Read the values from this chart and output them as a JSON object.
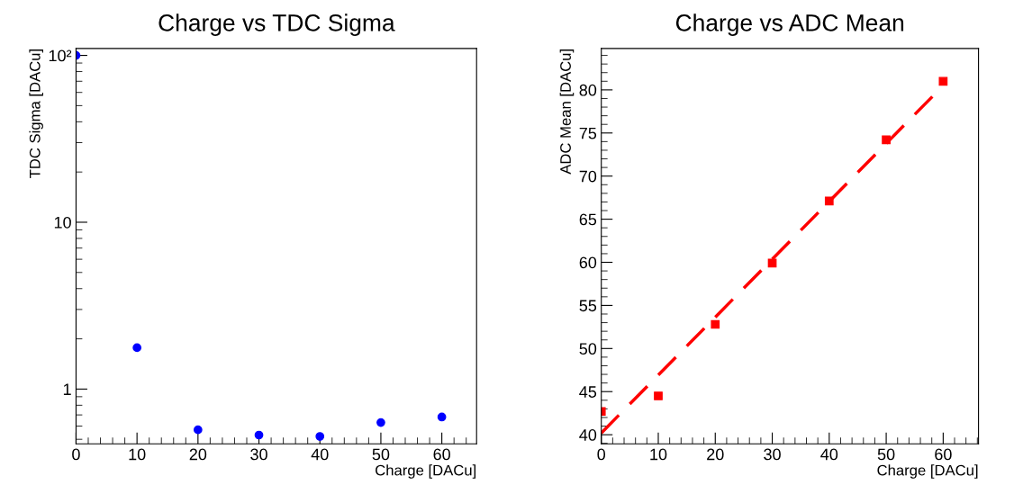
{
  "chart_data": [
    {
      "type": "scatter",
      "title": "Charge vs TDC Sigma",
      "xlabel": "Charge [DACu]",
      "ylabel": "TDC Sigma [DACu]",
      "log": "y",
      "grid": false,
      "marker": "circle",
      "xlim": [
        0,
        65.7
      ],
      "xticks": [
        0,
        10,
        20,
        30,
        40,
        50,
        60
      ],
      "ylim": [
        0.47,
        110
      ],
      "yticks": [
        1,
        10,
        {
          "value": 100,
          "label": "10²"
        }
      ],
      "series": [
        {
          "color": "#0000ff",
          "x": [
            0,
            10,
            20,
            30,
            40,
            50,
            60
          ],
          "values": [
            100,
            1.77,
            0.57,
            0.53,
            0.52,
            0.63,
            0.68
          ]
        }
      ]
    },
    {
      "type": "scatter",
      "title": "Charge vs ADC Mean",
      "xlabel": "Charge [DACu]",
      "ylabel": "ADC Mean [DACu]",
      "grid": false,
      "marker": "square",
      "xlim": [
        0,
        66.2
      ],
      "xticks": [
        0,
        10,
        20,
        30,
        40,
        50,
        60
      ],
      "ylim": [
        38.95,
        84.8
      ],
      "yticks": [
        40,
        45,
        50,
        55,
        60,
        65,
        70,
        75,
        80
      ],
      "series": [
        {
          "color": "#ff0000",
          "x": [
            0,
            10,
            20,
            30,
            40,
            50,
            60
          ],
          "values": [
            42.7,
            44.5,
            52.8,
            59.9,
            67.1,
            74.2,
            81.0
          ]
        },
        {
          "type": "line",
          "color": "#ff0000",
          "line_style": "dashed",
          "marker": "none",
          "x": [
            0,
            60
          ],
          "values": [
            40.2,
            80.5
          ]
        }
      ]
    }
  ]
}
